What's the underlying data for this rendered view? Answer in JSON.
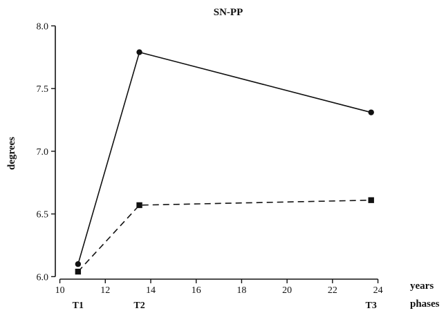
{
  "chart_data": {
    "type": "line",
    "title": "SN-PP",
    "xlabel": "years",
    "ylabel": "degrees",
    "xlim": [
      9.8,
      24.5
    ],
    "ylim": [
      5.98,
      8.03
    ],
    "x_ticks": [
      "10",
      "12",
      "14",
      "16",
      "18",
      "20",
      "22",
      "24"
    ],
    "y_ticks": [
      "6.0",
      "6.5",
      "7.0",
      "7.5",
      "8.0"
    ],
    "phase_axis_label": "phases",
    "phases": [
      {
        "label": "T1",
        "x": 10.8
      },
      {
        "label": "T2",
        "x": 13.5
      },
      {
        "label": "T3",
        "x": 23.7
      }
    ],
    "series": [
      {
        "marker": "circle",
        "line_style": "solid",
        "points": [
          {
            "x": 10.8,
            "y": 6.1
          },
          {
            "x": 13.5,
            "y": 7.79
          },
          {
            "x": 23.7,
            "y": 7.31
          }
        ]
      },
      {
        "marker": "square",
        "line_style": "dashed",
        "points": [
          {
            "x": 10.8,
            "y": 6.04
          },
          {
            "x": 13.5,
            "y": 6.57
          },
          {
            "x": 23.7,
            "y": 6.61
          }
        ]
      }
    ],
    "grid": false,
    "legend": "none"
  }
}
